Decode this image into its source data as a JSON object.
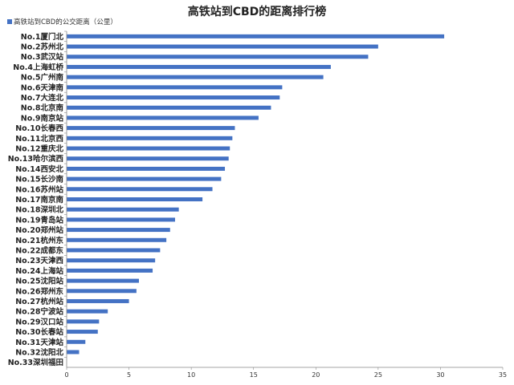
{
  "chart_data": {
    "type": "bar",
    "orientation": "horizontal",
    "title": "高铁站到CBD的距离排行榜",
    "legend_position": "top-left",
    "series": [
      {
        "name": "高铁站到CBD的公交距离（公里）",
        "color": "#4472c4",
        "values": [
          30.3,
          25.0,
          24.2,
          21.2,
          20.6,
          17.3,
          17.1,
          16.4,
          15.4,
          13.5,
          13.3,
          13.1,
          13.0,
          12.7,
          12.4,
          11.7,
          10.9,
          9.0,
          8.7,
          8.3,
          8.0,
          7.5,
          7.1,
          6.9,
          5.8,
          5.6,
          5.0,
          3.3,
          2.6,
          2.5,
          1.5,
          1.0,
          0.0
        ]
      }
    ],
    "categories": [
      "No.1厦门北",
      "No.2苏州北",
      "No.3武汉站",
      "No.4上海虹桥",
      "No.5广州南",
      "No.6天津南",
      "No.7大连北",
      "No.8北京南",
      "No.9南京站",
      "No.10长春西",
      "No.11北京西",
      "No.12重庆北",
      "No.13哈尔滨西",
      "No.14西安北",
      "No.15长沙南",
      "No.16苏州站",
      "No.17南京南",
      "No.18深圳北",
      "No.19青岛站",
      "No.20郑州站",
      "No.21杭州东",
      "No.22成都东",
      "No.23天津西",
      "No.24上海站",
      "No.25沈阳站",
      "No.26郑州东",
      "No.27杭州站",
      "No.28宁波站",
      "No.29汉口站",
      "No.30长春站",
      "No.31天津站",
      "No.32沈阳北",
      "No.33深圳福田"
    ],
    "xlim": [
      0,
      35
    ],
    "xticks": [
      "0",
      "5",
      "10",
      "15",
      "20",
      "25",
      "30",
      "35"
    ],
    "grid": false
  }
}
